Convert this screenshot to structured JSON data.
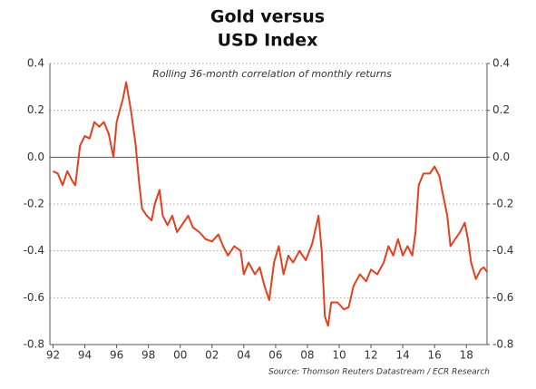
{
  "chart_data": {
    "type": "line",
    "title": [
      "Gold versus",
      "USD Index"
    ],
    "subtitle": "Rolling 36-month correlation of monthly returns",
    "source": "Source: Thomson Reuters Datastream / ECR Research",
    "x": [
      1992.0,
      1992.3,
      1992.6,
      1992.9,
      1993.2,
      1993.4,
      1993.7,
      1994.0,
      1994.3,
      1994.6,
      1994.9,
      1995.2,
      1995.5,
      1995.8,
      1996.0,
      1996.4,
      1996.6,
      1996.9,
      1997.2,
      1997.4,
      1997.6,
      1997.9,
      1998.2,
      1998.4,
      1998.7,
      1998.9,
      1999.2,
      1999.5,
      1999.8,
      2000.2,
      2000.5,
      2000.8,
      2001.2,
      2001.6,
      2002.0,
      2002.4,
      2002.7,
      2003.0,
      2003.4,
      2003.8,
      2004.0,
      2004.3,
      2004.7,
      2005.0,
      2005.3,
      2005.6,
      2005.9,
      2006.2,
      2006.5,
      2006.8,
      2007.1,
      2007.5,
      2007.9,
      2008.3,
      2008.7,
      2008.9,
      2009.1,
      2009.3,
      2009.5,
      2009.9,
      2010.3,
      2010.6,
      2010.9,
      2011.3,
      2011.7,
      2012.0,
      2012.4,
      2012.8,
      2013.1,
      2013.4,
      2013.7,
      2014.0,
      2014.3,
      2014.6,
      2014.8,
      2015.0,
      2015.3,
      2015.7,
      2016.0,
      2016.3,
      2016.5,
      2016.8,
      2017.0,
      2017.3,
      2017.6,
      2017.9,
      2018.1,
      2018.3,
      2018.6,
      2018.9,
      2019.1,
      2019.3
    ],
    "series": [
      {
        "name": "Gold vs USD Index correlation",
        "color": "#e2401f",
        "values": [
          -0.06,
          -0.07,
          -0.12,
          -0.06,
          -0.1,
          -0.12,
          0.05,
          0.09,
          0.08,
          0.15,
          0.13,
          0.15,
          0.1,
          0.0,
          0.15,
          0.25,
          0.32,
          0.2,
          0.05,
          -0.1,
          -0.22,
          -0.25,
          -0.27,
          -0.2,
          -0.14,
          -0.25,
          -0.29,
          -0.25,
          -0.32,
          -0.28,
          -0.25,
          -0.3,
          -0.32,
          -0.35,
          -0.36,
          -0.33,
          -0.38,
          -0.42,
          -0.38,
          -0.4,
          -0.5,
          -0.45,
          -0.5,
          -0.47,
          -0.55,
          -0.61,
          -0.45,
          -0.38,
          -0.5,
          -0.42,
          -0.45,
          -0.4,
          -0.44,
          -0.37,
          -0.25,
          -0.4,
          -0.68,
          -0.72,
          -0.62,
          -0.62,
          -0.65,
          -0.64,
          -0.55,
          -0.5,
          -0.53,
          -0.48,
          -0.5,
          -0.45,
          -0.38,
          -0.42,
          -0.35,
          -0.42,
          -0.38,
          -0.42,
          -0.32,
          -0.12,
          -0.07,
          -0.07,
          -0.04,
          -0.08,
          -0.15,
          -0.25,
          -0.38,
          -0.35,
          -0.32,
          -0.28,
          -0.35,
          -0.45,
          -0.52,
          -0.48,
          -0.47,
          -0.49
        ]
      }
    ],
    "xlim": [
      1991.8,
      2019.3
    ],
    "xticks": [
      {
        "value": 1992,
        "label": "92"
      },
      {
        "value": 1994,
        "label": "94"
      },
      {
        "value": 1996,
        "label": "96"
      },
      {
        "value": 1998,
        "label": "98"
      },
      {
        "value": 2000,
        "label": "00"
      },
      {
        "value": 2002,
        "label": "02"
      },
      {
        "value": 2004,
        "label": "04"
      },
      {
        "value": 2006,
        "label": "06"
      },
      {
        "value": 2008,
        "label": "08"
      },
      {
        "value": 2010,
        "label": "10"
      },
      {
        "value": 2012,
        "label": "12"
      },
      {
        "value": 2014,
        "label": "14"
      },
      {
        "value": 2016,
        "label": "16"
      },
      {
        "value": 2018,
        "label": "18"
      }
    ],
    "ylim": [
      -0.8,
      0.4
    ],
    "yticks": [
      0.4,
      0.2,
      {
        "value": 0,
        "label": "0.0"
      },
      -0.2,
      -0.4,
      -0.6,
      -0.8
    ],
    "y2lim": [
      -0.8,
      0.4
    ],
    "y2ticks": [
      0.4,
      0.2,
      {
        "value": 0,
        "label": "0.0"
      },
      -0.2,
      -0.4,
      -0.6,
      -0.8
    ],
    "grid": true
  }
}
